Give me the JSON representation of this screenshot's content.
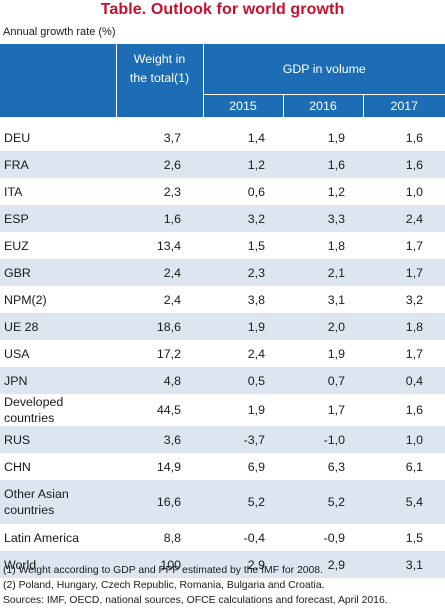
{
  "title": "Table. Outlook for world growth",
  "subtitle": "Annual growth rate (%)",
  "header": {
    "weight_line1": "Weight in",
    "weight_line2": "the total(1)",
    "gdp_label": "GDP in volume",
    "years": [
      "2015",
      "2016",
      "2017"
    ]
  },
  "rows": [
    {
      "label": "DEU",
      "weight": "3,7",
      "y2015": "1,4",
      "y2016": "1,9",
      "y2017": "1,6"
    },
    {
      "label": "FRA",
      "weight": "2,6",
      "y2015": "1,2",
      "y2016": "1,6",
      "y2017": "1,6"
    },
    {
      "label": "ITA",
      "weight": "2,3",
      "y2015": "0,6",
      "y2016": "1,2",
      "y2017": "1,0"
    },
    {
      "label": "ESP",
      "weight": "1,6",
      "y2015": "3,2",
      "y2016": "3,3",
      "y2017": "2,4"
    },
    {
      "label": "EUZ",
      "weight": "13,4",
      "y2015": "1,5",
      "y2016": "1,8",
      "y2017": "1,7"
    },
    {
      "label": "GBR",
      "weight": "2,4",
      "y2015": "2,3",
      "y2016": "2,1",
      "y2017": "1,7"
    },
    {
      "label": "NPM(2)",
      "weight": "2,4",
      "y2015": "3,8",
      "y2016": "3,1",
      "y2017": "3,2"
    },
    {
      "label": "UE 28",
      "weight": "18,6",
      "y2015": "1,9",
      "y2016": "2,0",
      "y2017": "1,8"
    },
    {
      "label": "USA",
      "weight": "17,2",
      "y2015": "2,4",
      "y2016": "1,9",
      "y2017": "1,7"
    },
    {
      "label": "JPN",
      "weight": "4,8",
      "y2015": "0,5",
      "y2016": "0,7",
      "y2017": "0,4"
    },
    {
      "label": "Developed countries",
      "weight": "44,5",
      "y2015": "1,9",
      "y2016": "1,7",
      "y2017": "1,6"
    },
    {
      "label": "RUS",
      "weight": "3,6",
      "y2015": "-3,7",
      "y2016": "-1,0",
      "y2017": "1,0"
    },
    {
      "label": "CHN",
      "weight": "14,9",
      "y2015": "6,9",
      "y2016": "6,3",
      "y2017": "6,1"
    },
    {
      "label_line1": "Other Asian",
      "label_line2": "countries",
      "weight": "16,6",
      "y2015": "5,2",
      "y2016": "5,2",
      "y2017": "5,4"
    },
    {
      "label": "Latin America",
      "weight": "8,8",
      "y2015": "-0,4",
      "y2016": "-0,9",
      "y2017": "1,5"
    },
    {
      "label": "World",
      "weight": "100",
      "y2015": "2,9",
      "y2016": "2,9",
      "y2017": "3,1"
    }
  ],
  "footnotes": [
    "(1) Weight according to GDP and PPP estimated by the IMF for 2008.",
    "(2) Poland, Hungary, Czech Republic, Romania, Bulgaria and Croatia.",
    "Sources: IMF, OECD, national sources, OFCE calculations and forecast, April 2016."
  ],
  "colors": {
    "title": "#c8102e",
    "header_bg": "#1c6db6",
    "stripe": "#dde6f0"
  }
}
